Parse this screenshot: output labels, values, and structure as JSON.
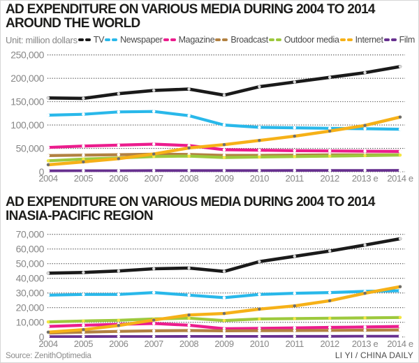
{
  "footer": {
    "source": "Source: ZenithOptimedia",
    "credit": "LI YI / CHINA DAILY"
  },
  "legend": {
    "unit_label": "Unit: million dollars",
    "items": [
      {
        "label": "TV",
        "color": "#1a1a1a"
      },
      {
        "label": "Newspaper",
        "color": "#29b8ea"
      },
      {
        "label": "Magazine",
        "color": "#ec1c8d"
      },
      {
        "label": "Broadcast",
        "color": "#b28141"
      },
      {
        "label": "Outdoor media",
        "color": "#9dc93d"
      },
      {
        "label": "Internet",
        "color": "#f6b118"
      },
      {
        "label": "Film",
        "color": "#67308f"
      }
    ]
  },
  "chart_data": [
    {
      "type": "line",
      "title_line1": "AD EXPENDITURE ON VARIOUS MEDIA DURING 2004 TO 2014",
      "title_line2": "AROUND THE WORLD",
      "unit": "million dollars",
      "grid": "dotted-horizontal",
      "legend_position": "top",
      "categories": [
        "2004",
        "2005",
        "2006",
        "2007",
        "2008",
        "2009",
        "2010",
        "2011",
        "2012",
        "2013 e",
        "2014 e"
      ],
      "ylim": [
        0,
        250000
      ],
      "ytick_values": [
        0,
        50000,
        100000,
        150000,
        200000,
        250000
      ],
      "ytick_labels": [
        "0",
        "50,000",
        "100,000",
        "150,000",
        "200,000",
        "250,000"
      ],
      "series": [
        {
          "name": "TV",
          "color": "#1a1a1a",
          "marker": "#d9d9d9",
          "values": [
            158000,
            157000,
            167000,
            174000,
            177000,
            164000,
            182000,
            192000,
            202000,
            212000,
            225000
          ]
        },
        {
          "name": "Newspaper",
          "color": "#29b8ea",
          "marker": "#ffffff",
          "values": [
            121000,
            123000,
            128000,
            129000,
            120000,
            100000,
            95000,
            94000,
            93000,
            92000,
            91000
          ]
        },
        {
          "name": "Magazine",
          "color": "#ec1c8d",
          "marker": "#ffffff",
          "values": [
            52000,
            55000,
            57000,
            59000,
            56000,
            47000,
            46000,
            45000,
            44500,
            44000,
            43500
          ]
        },
        {
          "name": "Broadcast",
          "color": "#b28141",
          "marker": "#ffffff",
          "values": [
            34500,
            35500,
            36500,
            37500,
            37000,
            35000,
            35000,
            35500,
            36000,
            36000,
            36500
          ]
        },
        {
          "name": "Outdoor media",
          "color": "#9dc93d",
          "marker": "#f5e642",
          "values": [
            23500,
            27000,
            29500,
            32500,
            33500,
            30500,
            31500,
            32500,
            33500,
            34500,
            35500
          ]
        },
        {
          "name": "Internet",
          "color": "#f6b118",
          "marker": "#6e6e6e",
          "values": [
            15000,
            21000,
            28000,
            38000,
            51000,
            58000,
            67000,
            76000,
            87000,
            99000,
            117000
          ]
        },
        {
          "name": "Film",
          "color": "#67308f",
          "marker": "#ffffff",
          "values": [
            2000,
            2200,
            2300,
            2500,
            2500,
            2500,
            2600,
            2700,
            2800,
            2900,
            3000
          ]
        }
      ]
    },
    {
      "type": "line",
      "title_line1": "AD EXPENDITURE ON VARIOUS MEDIA DURING 2004 TO 2014",
      "title_line2": "INASIA-PACIFIC REGION",
      "unit": "million dollars",
      "grid": "dotted-horizontal",
      "legend_position": "top",
      "categories": [
        "2004",
        "2005",
        "2006",
        "2007",
        "2008",
        "2009",
        "2010",
        "2011",
        "2012",
        "2013 e",
        "2014 e"
      ],
      "ylim": [
        0,
        70000
      ],
      "ytick_values": [
        0,
        10000,
        20000,
        30000,
        40000,
        50000,
        60000,
        70000
      ],
      "ytick_labels": [
        "0",
        "10,000",
        "20,000",
        "30,000",
        "40,000",
        "50,000",
        "60,000",
        "70,000"
      ],
      "series": [
        {
          "name": "TV",
          "color": "#1a1a1a",
          "marker": "#d9d9d9",
          "values": [
            43500,
            44000,
            45000,
            46500,
            47000,
            44700,
            51400,
            55000,
            58600,
            62700,
            67000
          ]
        },
        {
          "name": "Newspaper",
          "color": "#29b8ea",
          "marker": "#ffffff",
          "values": [
            28500,
            29000,
            29000,
            30300,
            28500,
            26800,
            29000,
            29800,
            30300,
            31100,
            31500
          ]
        },
        {
          "name": "Magazine",
          "color": "#ec1c8d",
          "marker": "#ffffff",
          "values": [
            7200,
            8000,
            8600,
            9200,
            8000,
            5600,
            5900,
            6200,
            6500,
            6800,
            7200
          ]
        },
        {
          "name": "Broadcast",
          "color": "#b28141",
          "marker": "#ffffff",
          "values": [
            2700,
            3300,
            3800,
            4200,
            4400,
            4200,
            4300,
            4400,
            4500,
            4600,
            4800
          ]
        },
        {
          "name": "Outdoor media",
          "color": "#9dc93d",
          "marker": "#f5e642",
          "values": [
            10300,
            10900,
            11400,
            12300,
            12800,
            11200,
            12300,
            12500,
            12800,
            13000,
            13300
          ]
        },
        {
          "name": "Internet",
          "color": "#f6b118",
          "marker": "#6e6e6e",
          "values": [
            3300,
            5000,
            7800,
            11500,
            15000,
            16000,
            19000,
            21200,
            24700,
            29800,
            34300
          ]
        },
        {
          "name": "Film",
          "color": "#67308f",
          "marker": "#ffffff",
          "values": [
            300,
            300,
            350,
            350,
            400,
            400,
            400,
            450,
            450,
            500,
            500
          ]
        }
      ]
    }
  ]
}
